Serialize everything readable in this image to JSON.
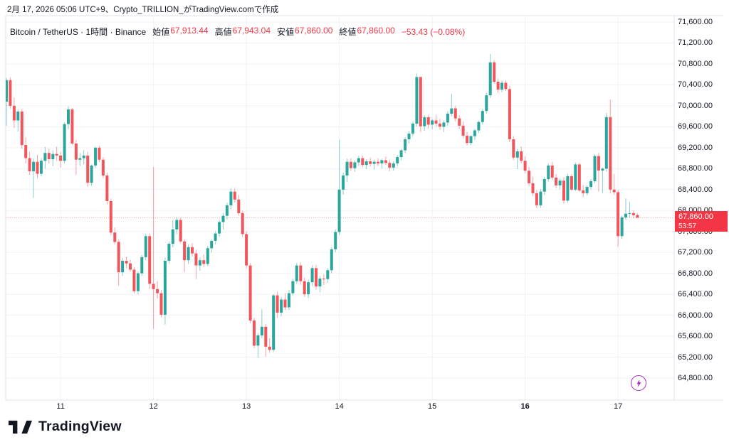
{
  "attribution": "2月 17, 2026 05:06 UTC+9、Crypto_TRILLION_がTradingView.comで作成",
  "symbol_bar": {
    "title": "Bitcoin / TetherUS · 1時間 · Binance",
    "ohlc": [
      {
        "label": "始値",
        "value": "67,913.44"
      },
      {
        "label": "高値",
        "value": "67,943.04"
      },
      {
        "label": "安値",
        "value": "67,860.00"
      },
      {
        "label": "終値",
        "value": "67,860.00"
      }
    ],
    "change": "−53.43 (−0.08%)"
  },
  "price_label": {
    "price": "67,860.00",
    "countdown": "53:57"
  },
  "price_axis": {
    "values": [
      71600,
      71200,
      70800,
      70400,
      70000,
      69600,
      69200,
      68800,
      68400,
      68000,
      67600,
      67200,
      66800,
      66400,
      66000,
      65600,
      65200,
      64800
    ],
    "labels": [
      "71,600.00",
      "71,200.00",
      "70,800.00",
      "70,400.00",
      "70,000.00",
      "69,600.00",
      "69,200.00",
      "68,800.00",
      "68,400.00",
      "68,000.00",
      "67,600.00",
      "67,200.00",
      "66,800.00",
      "66,400.00",
      "66,000.00",
      "65,600.00",
      "65,200.00",
      "64,800.00"
    ]
  },
  "time_axis": {
    "labels": [
      {
        "text": "11",
        "candle_index": 14,
        "bold": false
      },
      {
        "text": "12",
        "candle_index": 38,
        "bold": false
      },
      {
        "text": "13",
        "candle_index": 62,
        "bold": false
      },
      {
        "text": "14",
        "candle_index": 86,
        "bold": false
      },
      {
        "text": "15",
        "candle_index": 110,
        "bold": false
      },
      {
        "text": "16",
        "candle_index": 134,
        "bold": true
      },
      {
        "text": "17",
        "candle_index": 158,
        "bold": false
      }
    ]
  },
  "logo": {
    "text": "TradingView"
  },
  "colors": {
    "up": "#2aa69c",
    "down": "#f2565c",
    "accent_red": "#F23645",
    "purple": "#a52dbc",
    "grid": "#f0f2f7",
    "frame": "#e0e3eb",
    "text": "#131722"
  },
  "chart_data": {
    "type": "candlestick",
    "title": "Bitcoin / TetherUS · 1時間 · Binance",
    "pair": "Bitcoin / TetherUS",
    "interval": "1時間",
    "exchange": "Binance",
    "y_range": [
      64800,
      71600
    ],
    "y_step": 400,
    "last_price": 67860,
    "last_candle_ohlc": [
      67913.44,
      67943.04,
      67860.0,
      67860.0
    ],
    "candles": [
      [
        70080,
        70530,
        69620,
        70490
      ],
      [
        70490,
        70540,
        69940,
        70000
      ],
      [
        70000,
        70160,
        69580,
        69720
      ],
      [
        69720,
        69930,
        69510,
        69890
      ],
      [
        69890,
        69940,
        69180,
        69250
      ],
      [
        69250,
        69400,
        68900,
        69000
      ],
      [
        69000,
        69120,
        68680,
        68750
      ],
      [
        68750,
        68990,
        68240,
        68930
      ],
      [
        68930,
        69060,
        68620,
        68700
      ],
      [
        68700,
        69000,
        68650,
        68950
      ],
      [
        68950,
        69215,
        68800,
        69100
      ],
      [
        69100,
        69180,
        68900,
        68980
      ],
      [
        68980,
        69150,
        68850,
        69080
      ],
      [
        69080,
        69220,
        68950,
        69050
      ],
      [
        69050,
        69120,
        68820,
        68950
      ],
      [
        68950,
        69680,
        68900,
        69650
      ],
      [
        69650,
        69990,
        69550,
        69930
      ],
      [
        69930,
        69960,
        69250,
        69280
      ],
      [
        69280,
        69350,
        68680,
        68970
      ],
      [
        68970,
        69100,
        68850,
        69000
      ],
      [
        69000,
        69150,
        68880,
        69050
      ],
      [
        69050,
        69120,
        68450,
        68530
      ],
      [
        68530,
        68880,
        68470,
        68860
      ],
      [
        68860,
        69215,
        68820,
        69200
      ],
      [
        69200,
        69230,
        68930,
        68970
      ],
      [
        68970,
        69020,
        68620,
        68670
      ],
      [
        68670,
        68720,
        68120,
        68180
      ],
      [
        68180,
        68230,
        67530,
        67580
      ],
      [
        67580,
        67680,
        67350,
        67400
      ],
      [
        67400,
        67450,
        66565,
        66820
      ],
      [
        66820,
        67100,
        66750,
        67040
      ],
      [
        67040,
        67120,
        66900,
        66990
      ],
      [
        66990,
        67060,
        66830,
        66870
      ],
      [
        66870,
        66920,
        66420,
        66460
      ],
      [
        66460,
        66840,
        66400,
        66800
      ],
      [
        66800,
        67150,
        66750,
        67110
      ],
      [
        67110,
        67550,
        67050,
        67510
      ],
      [
        67510,
        67560,
        66500,
        66600
      ],
      [
        66600,
        68830,
        65740,
        66500
      ],
      [
        66500,
        66650,
        66320,
        66420
      ],
      [
        66420,
        66480,
        65960,
        66010
      ],
      [
        66010,
        67100,
        65820,
        67040
      ],
      [
        67040,
        67410,
        66980,
        67365
      ],
      [
        67365,
        67820,
        67300,
        67640
      ],
      [
        67640,
        67870,
        67550,
        67820
      ],
      [
        67820,
        67860,
        67380,
        67410
      ],
      [
        67410,
        67450,
        66830,
        67050
      ],
      [
        67050,
        67350,
        66980,
        67300
      ],
      [
        67300,
        67380,
        67120,
        67180
      ],
      [
        67180,
        67250,
        66690,
        66950
      ],
      [
        66950,
        67100,
        66850,
        67050
      ],
      [
        67050,
        67160,
        66920,
        66980
      ],
      [
        66980,
        67320,
        66940,
        67280
      ],
      [
        67280,
        67450,
        67200,
        67420
      ],
      [
        67420,
        67600,
        67350,
        67560
      ],
      [
        67560,
        67820,
        67500,
        67780
      ],
      [
        67780,
        67950,
        67640,
        67900
      ],
      [
        67900,
        68150,
        67830,
        68100
      ],
      [
        68100,
        68424,
        68020,
        68360
      ],
      [
        68360,
        68430,
        68150,
        68210
      ],
      [
        68210,
        68300,
        67900,
        67950
      ],
      [
        67950,
        68000,
        67500,
        67550
      ],
      [
        67550,
        67600,
        66900,
        66950
      ],
      [
        66950,
        67000,
        65845,
        65900
      ],
      [
        65900,
        65950,
        65370,
        65420
      ],
      [
        65420,
        65660,
        65190,
        65615
      ],
      [
        65615,
        66115,
        65560,
        65780
      ],
      [
        65780,
        65830,
        65210,
        65400
      ],
      [
        65400,
        65560,
        65280,
        65340
      ],
      [
        65340,
        66400,
        65300,
        66380
      ],
      [
        66380,
        66450,
        65950,
        66050
      ],
      [
        66050,
        66350,
        65980,
        66300
      ],
      [
        66300,
        66420,
        66100,
        66150
      ],
      [
        66150,
        66480,
        66100,
        66420
      ],
      [
        66420,
        66700,
        66380,
        66650
      ],
      [
        66650,
        67000,
        66600,
        66950
      ],
      [
        66950,
        67010,
        66580,
        66650
      ],
      [
        66650,
        66720,
        66350,
        66400
      ],
      [
        66400,
        66680,
        66330,
        66630
      ],
      [
        66630,
        66950,
        66560,
        66900
      ],
      [
        66900,
        66960,
        66490,
        66550
      ],
      [
        66550,
        66750,
        66440,
        66700
      ],
      [
        66700,
        66780,
        66580,
        66690
      ],
      [
        66690,
        66900,
        66620,
        66860
      ],
      [
        66860,
        67300,
        66800,
        67260
      ],
      [
        67260,
        67640,
        67200,
        67590
      ],
      [
        67590,
        69350,
        67530,
        68400
      ],
      [
        68400,
        68720,
        68300,
        68670
      ],
      [
        68670,
        68990,
        68550,
        68930
      ],
      [
        68930,
        69000,
        68760,
        68810
      ],
      [
        68810,
        68960,
        68740,
        68920
      ],
      [
        68920,
        69040,
        68850,
        69000
      ],
      [
        69000,
        69050,
        68820,
        68870
      ],
      [
        68870,
        68980,
        68790,
        68940
      ],
      [
        68940,
        69010,
        68840,
        68890
      ],
      [
        68890,
        68970,
        68780,
        68930
      ],
      [
        68930,
        69000,
        68850,
        68900
      ],
      [
        68900,
        68990,
        68800,
        68960
      ],
      [
        68960,
        69030,
        68870,
        68910
      ],
      [
        68910,
        68970,
        68750,
        68820
      ],
      [
        68820,
        68940,
        68760,
        68900
      ],
      [
        68900,
        69060,
        68850,
        69020
      ],
      [
        69020,
        69180,
        68960,
        69150
      ],
      [
        69150,
        69400,
        69100,
        69360
      ],
      [
        69360,
        69520,
        69280,
        69470
      ],
      [
        69470,
        69700,
        69420,
        69660
      ],
      [
        69660,
        70620,
        69600,
        70550
      ],
      [
        70550,
        70560,
        69500,
        69610
      ],
      [
        69610,
        69820,
        69520,
        69780
      ],
      [
        69780,
        69830,
        69560,
        69640
      ],
      [
        69640,
        69760,
        69550,
        69720
      ],
      [
        69720,
        69830,
        69600,
        69660
      ],
      [
        69660,
        69750,
        69540,
        69600
      ],
      [
        69600,
        69720,
        69500,
        69680
      ],
      [
        69680,
        69900,
        69620,
        69850
      ],
      [
        69850,
        70230,
        69800,
        69950
      ],
      [
        69950,
        70000,
        69700,
        69760
      ],
      [
        69760,
        69820,
        69560,
        69620
      ],
      [
        69620,
        69700,
        69380,
        69430
      ],
      [
        69430,
        69500,
        69240,
        69290
      ],
      [
        69290,
        69440,
        69250,
        69420
      ],
      [
        69420,
        69560,
        69350,
        69530
      ],
      [
        69530,
        69720,
        69480,
        69690
      ],
      [
        69690,
        69940,
        69640,
        69900
      ],
      [
        69900,
        70250,
        69850,
        70200
      ],
      [
        70200,
        70990,
        70150,
        70830
      ],
      [
        70830,
        70870,
        70420,
        70460
      ],
      [
        70460,
        70520,
        70250,
        70310
      ],
      [
        70310,
        70480,
        70260,
        70440
      ],
      [
        70440,
        70490,
        70280,
        70320
      ],
      [
        70320,
        70380,
        69310,
        69360
      ],
      [
        69360,
        69420,
        68960,
        69010
      ],
      [
        69010,
        69180,
        68790,
        69130
      ],
      [
        69130,
        69220,
        68900,
        68950
      ],
      [
        68950,
        69040,
        68710,
        68760
      ],
      [
        68760,
        68830,
        68470,
        68520
      ],
      [
        68520,
        68640,
        68280,
        68330
      ],
      [
        68330,
        68390,
        68045,
        68100
      ],
      [
        68100,
        68410,
        68050,
        68360
      ],
      [
        68360,
        68640,
        68300,
        68600
      ],
      [
        68600,
        68900,
        68550,
        68860
      ],
      [
        68860,
        68930,
        68580,
        68630
      ],
      [
        68630,
        68700,
        68430,
        68480
      ],
      [
        68480,
        68620,
        68400,
        68570
      ],
      [
        68570,
        68640,
        68130,
        68190
      ],
      [
        68190,
        68700,
        68150,
        68655
      ],
      [
        68655,
        68700,
        68380,
        68400
      ],
      [
        68400,
        68920,
        68370,
        68880
      ],
      [
        68880,
        68910,
        68360,
        68385
      ],
      [
        68385,
        68490,
        68260,
        68330
      ],
      [
        68330,
        68480,
        68290,
        68450
      ],
      [
        68450,
        68600,
        68400,
        68560
      ],
      [
        68560,
        69070,
        68520,
        69040
      ],
      [
        69040,
        69100,
        68360,
        68765
      ],
      [
        68765,
        68820,
        68330,
        68800
      ],
      [
        68800,
        69865,
        68740,
        69785
      ],
      [
        69785,
        70120,
        68330,
        68400
      ],
      [
        68400,
        68700,
        68300,
        68350
      ],
      [
        68350,
        68390,
        67310,
        67510
      ],
      [
        67510,
        67900,
        67460,
        67870
      ],
      [
        67870,
        68230,
        67820,
        67940
      ],
      [
        67940,
        68170,
        67860,
        67950
      ],
      [
        67950,
        68000,
        67850,
        67910
      ],
      [
        67913.44,
        67943.04,
        67860,
        67860
      ]
    ]
  }
}
